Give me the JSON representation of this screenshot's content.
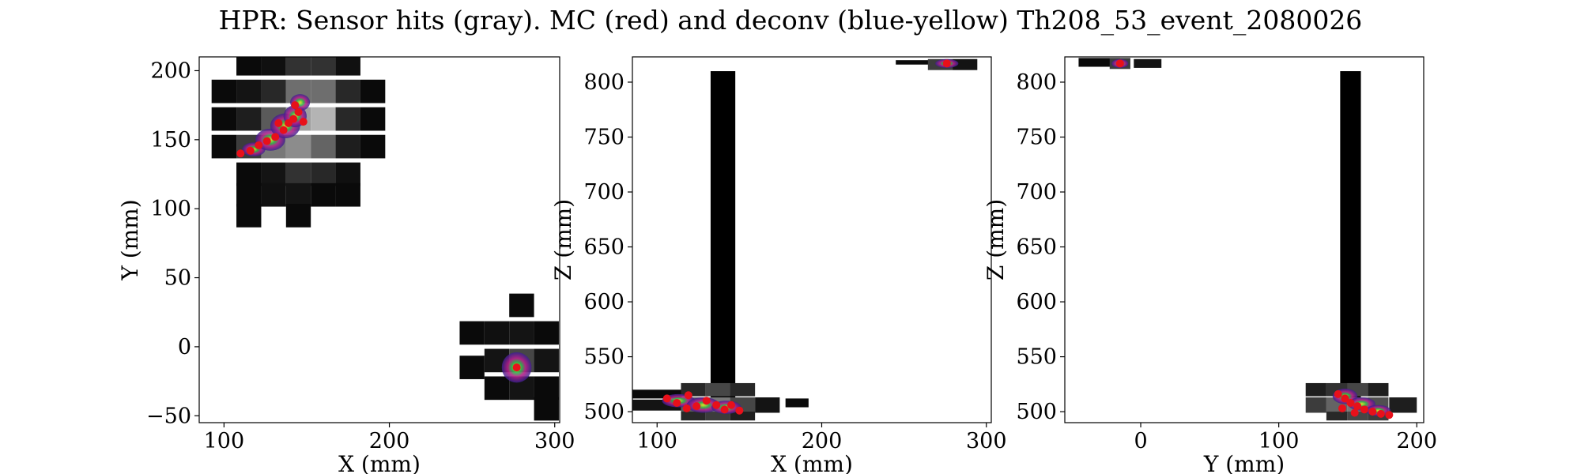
{
  "figure_title": "HPR: Sensor hits (gray). MC (red) and deconv (blue-yellow) Th208_53_event_2080026",
  "colors": {
    "mc": "#e8101a",
    "deconv_low": "#3b1f8f",
    "deconv_mid": "#b8208a",
    "deconv_high": "#f2ee20",
    "sensor_dark": "#000000",
    "sensor_light": "#c8c8c8"
  },
  "chart_data": [
    {
      "type": "heatmap",
      "title": "",
      "xlabel": "X (mm)",
      "ylabel": "Y (mm)",
      "xlim": [
        85,
        303
      ],
      "ylim": [
        -55,
        210
      ],
      "xticks": [
        100,
        200,
        300
      ],
      "yticks": [
        -50,
        0,
        50,
        100,
        150,
        200
      ],
      "grid": false,
      "sensor_cells": [
        {
          "x": 115,
          "y": 205,
          "v": 0.05
        },
        {
          "x": 130,
          "y": 205,
          "v": 0.08
        },
        {
          "x": 145,
          "y": 205,
          "v": 0.25
        },
        {
          "x": 160,
          "y": 205,
          "v": 0.25
        },
        {
          "x": 175,
          "y": 205,
          "v": 0.08
        },
        {
          "x": 100,
          "y": 185,
          "v": 0.05
        },
        {
          "x": 115,
          "y": 185,
          "v": 0.1
        },
        {
          "x": 130,
          "y": 185,
          "v": 0.2
        },
        {
          "x": 145,
          "y": 185,
          "v": 0.55
        },
        {
          "x": 160,
          "y": 185,
          "v": 0.55
        },
        {
          "x": 175,
          "y": 185,
          "v": 0.2
        },
        {
          "x": 190,
          "y": 185,
          "v": 0.05
        },
        {
          "x": 100,
          "y": 165,
          "v": 0.05
        },
        {
          "x": 115,
          "y": 165,
          "v": 0.15
        },
        {
          "x": 130,
          "y": 165,
          "v": 0.45
        },
        {
          "x": 145,
          "y": 165,
          "v": 0.8
        },
        {
          "x": 160,
          "y": 165,
          "v": 0.9
        },
        {
          "x": 175,
          "y": 165,
          "v": 0.2
        },
        {
          "x": 190,
          "y": 165,
          "v": 0.05
        },
        {
          "x": 100,
          "y": 145,
          "v": 0.05
        },
        {
          "x": 115,
          "y": 145,
          "v": 0.3
        },
        {
          "x": 130,
          "y": 145,
          "v": 0.6
        },
        {
          "x": 145,
          "y": 145,
          "v": 0.7
        },
        {
          "x": 160,
          "y": 145,
          "v": 0.5
        },
        {
          "x": 175,
          "y": 145,
          "v": 0.15
        },
        {
          "x": 190,
          "y": 145,
          "v": 0.05
        },
        {
          "x": 115,
          "y": 125,
          "v": 0.05
        },
        {
          "x": 130,
          "y": 125,
          "v": 0.1
        },
        {
          "x": 145,
          "y": 125,
          "v": 0.25
        },
        {
          "x": 160,
          "y": 125,
          "v": 0.2
        },
        {
          "x": 175,
          "y": 125,
          "v": 0.08
        },
        {
          "x": 115,
          "y": 110,
          "v": 0.05
        },
        {
          "x": 130,
          "y": 110,
          "v": 0.08
        },
        {
          "x": 145,
          "y": 110,
          "v": 0.1
        },
        {
          "x": 160,
          "y": 110,
          "v": 0.05
        },
        {
          "x": 175,
          "y": 110,
          "v": 0.05
        },
        {
          "x": 115,
          "y": 95,
          "v": 0.05
        },
        {
          "x": 145,
          "y": 95,
          "v": 0.05
        },
        {
          "x": 280,
          "y": 30,
          "v": 0.05
        },
        {
          "x": 250,
          "y": 10,
          "v": 0.05
        },
        {
          "x": 265,
          "y": 10,
          "v": 0.08
        },
        {
          "x": 280,
          "y": 10,
          "v": 0.1
        },
        {
          "x": 295,
          "y": 10,
          "v": 0.05
        },
        {
          "x": 265,
          "y": -10,
          "v": 0.1
        },
        {
          "x": 280,
          "y": -10,
          "v": 0.35
        },
        {
          "x": 295,
          "y": -10,
          "v": 0.1
        },
        {
          "x": 250,
          "y": -15,
          "v": 0.05
        },
        {
          "x": 265,
          "y": -30,
          "v": 0.05
        },
        {
          "x": 280,
          "y": -30,
          "v": 0.1
        },
        {
          "x": 295,
          "y": -30,
          "v": 0.05
        },
        {
          "x": 295,
          "y": -45,
          "v": 0.05
        }
      ],
      "deconv_blobs": [
        {
          "x": 118,
          "y": 143,
          "rx": 7,
          "ry": 5
        },
        {
          "x": 128,
          "y": 150,
          "rx": 9,
          "ry": 8
        },
        {
          "x": 137,
          "y": 160,
          "rx": 9,
          "ry": 9
        },
        {
          "x": 143,
          "y": 167,
          "rx": 7,
          "ry": 8
        },
        {
          "x": 146,
          "y": 177,
          "rx": 6,
          "ry": 6
        },
        {
          "x": 277,
          "y": -15,
          "rx": 9,
          "ry": 11
        }
      ],
      "mc_points": [
        {
          "x": 110,
          "y": 140
        },
        {
          "x": 116,
          "y": 142
        },
        {
          "x": 121,
          "y": 146
        },
        {
          "x": 126,
          "y": 149
        },
        {
          "x": 131,
          "y": 152
        },
        {
          "x": 136,
          "y": 157
        },
        {
          "x": 139,
          "y": 162
        },
        {
          "x": 142,
          "y": 165
        },
        {
          "x": 145,
          "y": 170
        },
        {
          "x": 143,
          "y": 175
        },
        {
          "x": 148,
          "y": 163
        },
        {
          "x": 133,
          "y": 162
        },
        {
          "x": 277,
          "y": -15
        }
      ]
    },
    {
      "type": "heatmap",
      "title": "",
      "xlabel": "X (mm)",
      "ylabel": "Z (mm)",
      "xlim": [
        85,
        303
      ],
      "ylim": [
        490,
        823
      ],
      "xticks": [
        100,
        200,
        300
      ],
      "yticks": [
        500,
        550,
        600,
        650,
        700,
        750,
        800
      ],
      "grid": false,
      "sensor_cells": [
        {
          "x": 140,
          "y": 660,
          "w": 15,
          "h": 300,
          "v": 0
        },
        {
          "x": 100,
          "y": 516,
          "w": 30,
          "h": 8,
          "v": 0.05
        },
        {
          "x": 100,
          "y": 506,
          "w": 30,
          "h": 10,
          "v": 0.1
        },
        {
          "x": 122,
          "y": 520,
          "w": 15,
          "h": 12,
          "v": 0.2
        },
        {
          "x": 137,
          "y": 520,
          "w": 15,
          "h": 12,
          "v": 0.35
        },
        {
          "x": 152,
          "y": 520,
          "w": 15,
          "h": 12,
          "v": 0.2
        },
        {
          "x": 122,
          "y": 506,
          "w": 15,
          "h": 14,
          "v": 0.45
        },
        {
          "x": 137,
          "y": 506,
          "w": 15,
          "h": 14,
          "v": 0.6
        },
        {
          "x": 152,
          "y": 506,
          "w": 15,
          "h": 14,
          "v": 0.35
        },
        {
          "x": 167,
          "y": 506,
          "w": 15,
          "h": 14,
          "v": 0.1
        },
        {
          "x": 185,
          "y": 508,
          "w": 14,
          "h": 8,
          "v": 0.05
        },
        {
          "x": 122,
          "y": 496,
          "w": 15,
          "h": 8,
          "v": 0.2
        },
        {
          "x": 137,
          "y": 496,
          "w": 15,
          "h": 8,
          "v": 0.3
        },
        {
          "x": 152,
          "y": 496,
          "w": 15,
          "h": 8,
          "v": 0.15
        },
        {
          "x": 256,
          "y": 818,
          "w": 22,
          "h": 4,
          "v": 0.05
        },
        {
          "x": 272,
          "y": 816,
          "w": 15,
          "h": 10,
          "v": 0.3
        },
        {
          "x": 287,
          "y": 816,
          "w": 15,
          "h": 10,
          "v": 0.1
        }
      ],
      "deconv_blobs": [
        {
          "x": 113,
          "y": 510,
          "rx": 10,
          "ry": 6
        },
        {
          "x": 128,
          "y": 506,
          "rx": 10,
          "ry": 7
        },
        {
          "x": 142,
          "y": 504,
          "rx": 9,
          "ry": 6
        },
        {
          "x": 276,
          "y": 817,
          "rx": 7,
          "ry": 4
        }
      ],
      "mc_points": [
        {
          "x": 106,
          "y": 512
        },
        {
          "x": 112,
          "y": 508
        },
        {
          "x": 118,
          "y": 503
        },
        {
          "x": 124,
          "y": 505
        },
        {
          "x": 130,
          "y": 510
        },
        {
          "x": 136,
          "y": 506
        },
        {
          "x": 141,
          "y": 502
        },
        {
          "x": 145,
          "y": 506
        },
        {
          "x": 150,
          "y": 501
        },
        {
          "x": 119,
          "y": 515
        },
        {
          "x": 276,
          "y": 817
        }
      ]
    },
    {
      "type": "heatmap",
      "title": "",
      "xlabel": "Y (mm)",
      "ylabel": "Z (mm)",
      "xlim": [
        -55,
        205
      ],
      "ylim": [
        490,
        823
      ],
      "xticks": [
        0,
        100,
        200
      ],
      "yticks": [
        500,
        550,
        600,
        650,
        700,
        750,
        800
      ],
      "grid": false,
      "sensor_cells": [
        {
          "x": 152,
          "y": 660,
          "w": 15,
          "h": 300,
          "v": 0
        },
        {
          "x": -30,
          "y": 818,
          "w": 30,
          "h": 8,
          "v": 0.05
        },
        {
          "x": -15,
          "y": 817,
          "w": 15,
          "h": 10,
          "v": 0.3
        },
        {
          "x": 5,
          "y": 817,
          "w": 20,
          "h": 8,
          "v": 0.1
        },
        {
          "x": 127,
          "y": 520,
          "w": 15,
          "h": 12,
          "v": 0.15
        },
        {
          "x": 142,
          "y": 520,
          "w": 15,
          "h": 12,
          "v": 0.25
        },
        {
          "x": 157,
          "y": 520,
          "w": 15,
          "h": 12,
          "v": 0.35
        },
        {
          "x": 172,
          "y": 520,
          "w": 15,
          "h": 12,
          "v": 0.15
        },
        {
          "x": 127,
          "y": 506,
          "w": 15,
          "h": 14,
          "v": 0.3
        },
        {
          "x": 142,
          "y": 506,
          "w": 15,
          "h": 14,
          "v": 0.5
        },
        {
          "x": 157,
          "y": 506,
          "w": 15,
          "h": 14,
          "v": 0.6
        },
        {
          "x": 172,
          "y": 506,
          "w": 15,
          "h": 14,
          "v": 0.4
        },
        {
          "x": 190,
          "y": 506,
          "w": 20,
          "h": 14,
          "v": 0.15
        },
        {
          "x": 142,
          "y": 496,
          "w": 15,
          "h": 8,
          "v": 0.2
        },
        {
          "x": 157,
          "y": 496,
          "w": 15,
          "h": 8,
          "v": 0.35
        },
        {
          "x": 172,
          "y": 496,
          "w": 15,
          "h": 8,
          "v": 0.3
        }
      ],
      "deconv_blobs": [
        {
          "x": 148,
          "y": 514,
          "rx": 9,
          "ry": 7
        },
        {
          "x": 160,
          "y": 507,
          "rx": 10,
          "ry": 6
        },
        {
          "x": 172,
          "y": 501,
          "rx": 9,
          "ry": 5
        },
        {
          "x": -15,
          "y": 817,
          "rx": 6,
          "ry": 4
        }
      ],
      "mc_points": [
        {
          "x": 143,
          "y": 516
        },
        {
          "x": 148,
          "y": 512
        },
        {
          "x": 152,
          "y": 508
        },
        {
          "x": 157,
          "y": 505
        },
        {
          "x": 162,
          "y": 502
        },
        {
          "x": 168,
          "y": 500
        },
        {
          "x": 174,
          "y": 498
        },
        {
          "x": 180,
          "y": 497
        },
        {
          "x": 146,
          "y": 503
        },
        {
          "x": 155,
          "y": 499
        },
        {
          "x": -15,
          "y": 817
        }
      ]
    }
  ]
}
